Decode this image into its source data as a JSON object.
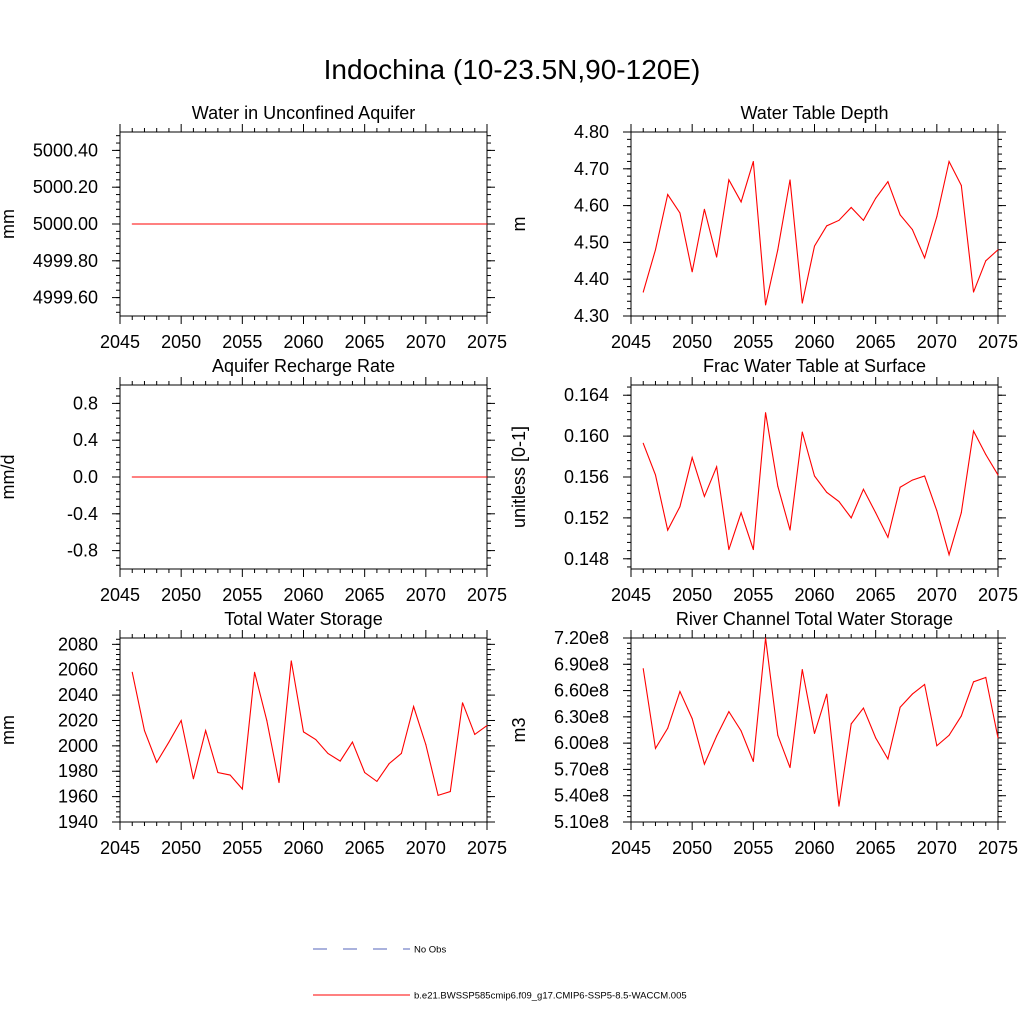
{
  "title": "Indochina (10-23.5N,90-120E)",
  "colors": {
    "series": "#ff0000",
    "no_obs": "#5566bb",
    "axis": "#000000"
  },
  "legend": {
    "no_obs_label": "No Obs",
    "model_label": "b.e21.BWSSP585cmip6.f09_g17.CMIP6-SSP5-8.5-WACCM.005"
  },
  "chart_data": [
    {
      "type": "line",
      "title": "Water in Unconfined Aquifer",
      "ylabel": "mm",
      "xlim": [
        2045,
        2075
      ],
      "ylim": [
        4999.5,
        5000.5
      ],
      "x_ticks": [
        "2045",
        "2050",
        "2055",
        "2060",
        "2065",
        "2070",
        "2075"
      ],
      "y_ticks": [
        4999.6,
        4999.8,
        5000.0,
        5000.2,
        5000.4
      ],
      "y_tick_labels": [
        "4999.60",
        "4999.80",
        "5000.00",
        "5000.20",
        "5000.40"
      ],
      "series": [
        {
          "x": [
            2046,
            2047,
            2048,
            2049,
            2050,
            2051,
            2052,
            2053,
            2054,
            2055,
            2056,
            2057,
            2058,
            2059,
            2060,
            2061,
            2062,
            2063,
            2064,
            2065,
            2066,
            2067,
            2068,
            2069,
            2070,
            2071,
            2072,
            2073,
            2074,
            2075
          ],
          "values": [
            5000,
            5000,
            5000,
            5000,
            5000,
            5000,
            5000,
            5000,
            5000,
            5000,
            5000,
            5000,
            5000,
            5000,
            5000,
            5000,
            5000,
            5000,
            5000,
            5000,
            5000,
            5000,
            5000,
            5000,
            5000,
            5000,
            5000,
            5000,
            5000,
            5000
          ]
        }
      ]
    },
    {
      "type": "line",
      "title": "Water Table Depth",
      "ylabel": "m",
      "xlim": [
        2045,
        2075
      ],
      "ylim": [
        4.3,
        4.8
      ],
      "x_ticks": [
        "2045",
        "2050",
        "2055",
        "2060",
        "2065",
        "2070",
        "2075"
      ],
      "y_ticks": [
        4.3,
        4.4,
        4.5,
        4.6,
        4.7,
        4.8
      ],
      "y_tick_labels": [
        "4.30",
        "4.40",
        "4.50",
        "4.60",
        "4.70",
        "4.80"
      ],
      "series": [
        {
          "x": [
            2046,
            2047,
            2048,
            2049,
            2050,
            2051,
            2052,
            2053,
            2054,
            2055,
            2056,
            2057,
            2058,
            2059,
            2060,
            2061,
            2062,
            2063,
            2064,
            2065,
            2066,
            2067,
            2068,
            2069,
            2070,
            2071,
            2072,
            2073,
            2074,
            2075
          ],
          "values": [
            4.365,
            4.48,
            4.63,
            4.58,
            4.42,
            4.59,
            4.46,
            4.67,
            4.61,
            4.72,
            4.33,
            4.48,
            4.67,
            4.335,
            4.49,
            4.545,
            4.56,
            4.595,
            4.56,
            4.62,
            4.665,
            4.575,
            4.535,
            4.458,
            4.57,
            4.72,
            4.655,
            4.365,
            4.45,
            4.48
          ]
        }
      ]
    },
    {
      "type": "line",
      "title": "Aquifer Recharge Rate",
      "ylabel": "mm/d",
      "xlim": [
        2045,
        2075
      ],
      "ylim": [
        -1.0,
        1.0
      ],
      "x_ticks": [
        "2045",
        "2050",
        "2055",
        "2060",
        "2065",
        "2070",
        "2075"
      ],
      "y_ticks": [
        -0.8,
        -0.4,
        0.0,
        0.4,
        0.8
      ],
      "y_tick_labels": [
        "-0.8",
        "-0.4",
        "0.0",
        "0.4",
        "0.8"
      ],
      "series": [
        {
          "x": [
            2046,
            2047,
            2048,
            2049,
            2050,
            2051,
            2052,
            2053,
            2054,
            2055,
            2056,
            2057,
            2058,
            2059,
            2060,
            2061,
            2062,
            2063,
            2064,
            2065,
            2066,
            2067,
            2068,
            2069,
            2070,
            2071,
            2072,
            2073,
            2074,
            2075
          ],
          "values": [
            0,
            0,
            0,
            0,
            0,
            0,
            0,
            0,
            0,
            0,
            0,
            0,
            0,
            0,
            0,
            0,
            0,
            0,
            0,
            0,
            0,
            0,
            0,
            0,
            0,
            0,
            0,
            0,
            0,
            0
          ]
        }
      ]
    },
    {
      "type": "line",
      "title": "Frac Water Table at Surface",
      "ylabel": "unitless [0-1]",
      "xlim": [
        2045,
        2075
      ],
      "ylim": [
        0.147,
        0.165
      ],
      "x_ticks": [
        "2045",
        "2050",
        "2055",
        "2060",
        "2065",
        "2070",
        "2075"
      ],
      "y_ticks": [
        0.148,
        0.152,
        0.156,
        0.16,
        0.164
      ],
      "y_tick_labels": [
        "0.148",
        "0.152",
        "0.156",
        "0.160",
        "0.164"
      ],
      "series": [
        {
          "x": [
            2046,
            2047,
            2048,
            2049,
            2050,
            2051,
            2052,
            2053,
            2054,
            2055,
            2056,
            2057,
            2058,
            2059,
            2060,
            2061,
            2062,
            2063,
            2064,
            2065,
            2066,
            2067,
            2068,
            2069,
            2070,
            2071,
            2072,
            2073,
            2074,
            2075
          ],
          "values": [
            0.1593,
            0.1562,
            0.1508,
            0.1531,
            0.1579,
            0.1541,
            0.157,
            0.1489,
            0.1525,
            0.1489,
            0.1623,
            0.1551,
            0.1508,
            0.1604,
            0.1561,
            0.1545,
            0.1536,
            0.152,
            0.1548,
            0.1525,
            0.1501,
            0.155,
            0.1557,
            0.1561,
            0.1527,
            0.1484,
            0.1525,
            0.1605,
            0.1582,
            0.1562
          ]
        }
      ]
    },
    {
      "type": "line",
      "title": "Total Water Storage",
      "ylabel": "mm",
      "xlim": [
        2045,
        2075
      ],
      "ylim": [
        1940,
        2085
      ],
      "x_ticks": [
        "2045",
        "2050",
        "2055",
        "2060",
        "2065",
        "2070",
        "2075"
      ],
      "y_ticks": [
        1940,
        1960,
        1980,
        2000,
        2020,
        2040,
        2060,
        2080
      ],
      "y_tick_labels": [
        "1940",
        "1960",
        "1980",
        "2000",
        "2020",
        "2040",
        "2060",
        "2080"
      ],
      "series": [
        {
          "x": [
            2046,
            2047,
            2048,
            2049,
            2050,
            2051,
            2052,
            2053,
            2054,
            2055,
            2056,
            2057,
            2058,
            2059,
            2060,
            2061,
            2062,
            2063,
            2064,
            2065,
            2066,
            2067,
            2068,
            2069,
            2070,
            2071,
            2072,
            2073,
            2074,
            2075
          ],
          "values": [
            2058,
            2012,
            1987,
            2003,
            2020,
            1974,
            2012,
            1979,
            1977,
            1966,
            2058,
            2020,
            1971,
            2067,
            2011,
            2005,
            1994,
            1988,
            2003,
            1979,
            1972,
            1986,
            1994,
            2031,
            2001,
            1961,
            1964,
            2034,
            2009,
            2016
          ]
        }
      ]
    },
    {
      "type": "line",
      "title": "River Channel Total Water Storage",
      "ylabel": "m3",
      "xlim": [
        2045,
        2075
      ],
      "ylim": [
        510000000,
        720000000
      ],
      "x_ticks": [
        "2045",
        "2050",
        "2055",
        "2060",
        "2065",
        "2070",
        "2075"
      ],
      "y_ticks": [
        510000000,
        540000000,
        570000000,
        600000000,
        630000000,
        660000000,
        690000000,
        720000000
      ],
      "y_tick_labels": [
        "5.10e8",
        "5.40e8",
        "5.70e8",
        "6.00e8",
        "6.30e8",
        "6.60e8",
        "6.90e8",
        "7.20e8"
      ],
      "series": [
        {
          "x": [
            2046,
            2047,
            2048,
            2049,
            2050,
            2051,
            2052,
            2053,
            2054,
            2055,
            2056,
            2057,
            2058,
            2059,
            2060,
            2061,
            2062,
            2063,
            2064,
            2065,
            2066,
            2067,
            2068,
            2069,
            2070,
            2071,
            2072,
            2073,
            2074,
            2075
          ],
          "values": [
            685000000,
            594000000,
            617000000,
            659000000,
            628000000,
            576000000,
            608000000,
            636000000,
            614000000,
            579000000,
            720000000,
            609000000,
            572000000,
            684000000,
            611000000,
            656000000,
            528000000,
            622000000,
            640000000,
            606000000,
            582000000,
            641000000,
            656000000,
            667000000,
            597000000,
            609000000,
            631000000,
            670000000,
            675000000,
            606000000
          ]
        }
      ]
    }
  ]
}
